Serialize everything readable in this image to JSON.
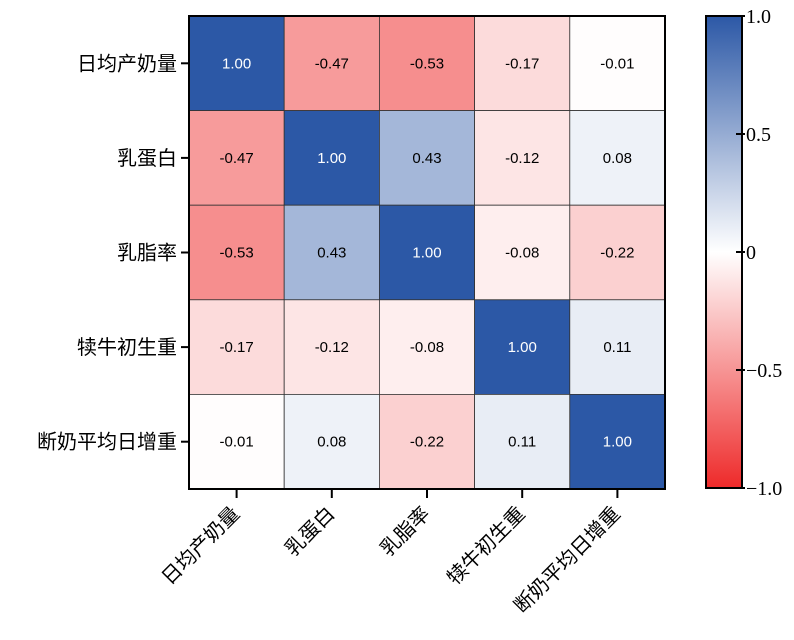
{
  "chart_data": {
    "type": "heatmap",
    "title": "",
    "xlabel": "",
    "ylabel": "",
    "categories": [
      "日均产奶量",
      "乳蛋白",
      "乳脂率",
      "犊牛初生重",
      "断奶平均日增重"
    ],
    "matrix": [
      [
        1.0,
        -0.47,
        -0.53,
        -0.17,
        -0.01
      ],
      [
        -0.47,
        1.0,
        0.43,
        -0.12,
        0.08
      ],
      [
        -0.53,
        0.43,
        1.0,
        -0.08,
        -0.22
      ],
      [
        -0.17,
        -0.12,
        -0.08,
        1.0,
        0.11
      ],
      [
        -0.01,
        0.08,
        -0.22,
        0.11,
        1.0
      ]
    ],
    "value_format": "2 decimals",
    "colorbar": {
      "min": -1.0,
      "max": 1.0,
      "ticks": [
        1.0,
        0.5,
        0,
        -0.5,
        -1.0
      ],
      "tick_labels": [
        "1.0",
        "0.5",
        "0",
        "−0.5",
        "−1.0"
      ],
      "colors": {
        "low": "#ee2a2a",
        "mid": "#ffffff",
        "high": "#2c58a6"
      }
    },
    "legend_position": "right",
    "grid": true
  }
}
